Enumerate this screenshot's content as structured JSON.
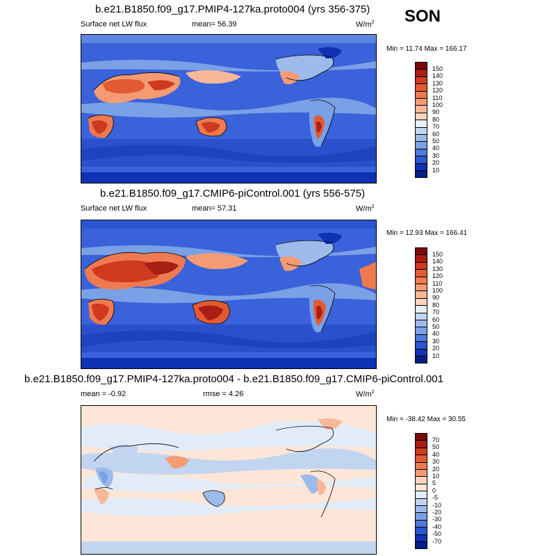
{
  "season": "SON",
  "panels": [
    {
      "title": "b.e21.B1850.f09_g17.PMIP4-127ka.proto004 (yrs 356-375)",
      "left_label": "Surface net LW flux",
      "mid_label": "mean=  56.39",
      "units_main": "W/m",
      "units_exp": "2",
      "minmax": "Min =  11.74 Max = 166.17",
      "colorbar": {
        "labels": [
          "150",
          "140",
          "130",
          "120",
          "110",
          "100",
          "90",
          "80",
          "70",
          "60",
          "50",
          "40",
          "30",
          "20",
          "10"
        ],
        "colors": [
          "#7d0a0a",
          "#a81d14",
          "#cf3a1f",
          "#e35a32",
          "#ef7a50",
          "#f59b74",
          "#f8b898",
          "#fbd4bd",
          "#e6eef8",
          "#c2d5f0",
          "#9cbbeb",
          "#7aa0e6",
          "#4f7bde",
          "#2c55d0",
          "#0f31b4",
          "#061e86"
        ]
      }
    },
    {
      "title": "b.e21.B1850.f09_g17.CMIP6-piControl.001 (yrs 556-575)",
      "left_label": "Surface net LW flux",
      "mid_label": "mean=  57.31",
      "units_main": "W/m",
      "units_exp": "2",
      "minmax": "Min =  12.93 Max = 166.41",
      "colorbar": {
        "labels": [
          "150",
          "140",
          "130",
          "120",
          "110",
          "100",
          "90",
          "80",
          "70",
          "60",
          "50",
          "40",
          "30",
          "20",
          "10"
        ],
        "colors": [
          "#7d0a0a",
          "#a81d14",
          "#cf3a1f",
          "#e35a32",
          "#ef7a50",
          "#f59b74",
          "#f8b898",
          "#fbd4bd",
          "#e6eef8",
          "#c2d5f0",
          "#9cbbeb",
          "#7aa0e6",
          "#4f7bde",
          "#2c55d0",
          "#0f31b4",
          "#061e86"
        ]
      }
    },
    {
      "title": "b.e21.B1850.f09_g17.PMIP4-127ka.proto004 - b.e21.B1850.f09_g17.CMIP6-piControl.001",
      "left_label": "mean =  -0.92",
      "mid_label": "rmse =  4.26",
      "units_main": "W/m",
      "units_exp": "2",
      "minmax": "Min = -38.42 Max =  30.55",
      "colorbar": {
        "labels": [
          "70",
          "50",
          "40",
          "30",
          "20",
          "10",
          "5",
          "0",
          "-5",
          "-10",
          "-20",
          "-30",
          "-40",
          "-50",
          "-70"
        ],
        "colors": [
          "#7d0a0a",
          "#a81d14",
          "#cf3a1f",
          "#e35a32",
          "#ef7a50",
          "#f59b74",
          "#fbd4bd",
          "#fde6d8",
          "#e2ecf8",
          "#c2d5f0",
          "#9cbbeb",
          "#7aa0e6",
          "#4f7bde",
          "#2c55d0",
          "#0f31b4",
          "#061e86"
        ]
      }
    }
  ],
  "chart_data": [
    {
      "type": "heatmap",
      "title": "b.e21.B1850.f09_g17.PMIP4-127ka.proto004 (yrs 356-375)",
      "field": "Surface net LW flux",
      "units": "W/m2",
      "season": "SON",
      "mean": 56.39,
      "min": 11.74,
      "max": 166.17,
      "levels": [
        10,
        20,
        30,
        40,
        50,
        60,
        70,
        80,
        90,
        100,
        110,
        120,
        130,
        140,
        150
      ]
    },
    {
      "type": "heatmap",
      "title": "b.e21.B1850.f09_g17.CMIP6-piControl.001 (yrs 556-575)",
      "field": "Surface net LW flux",
      "units": "W/m2",
      "season": "SON",
      "mean": 57.31,
      "min": 12.93,
      "max": 166.41,
      "levels": [
        10,
        20,
        30,
        40,
        50,
        60,
        70,
        80,
        90,
        100,
        110,
        120,
        130,
        140,
        150
      ]
    },
    {
      "type": "heatmap",
      "title": "b.e21.B1850.f09_g17.PMIP4-127ka.proto004 - b.e21.B1850.f09_g17.CMIP6-piControl.001",
      "units": "W/m2",
      "season": "SON",
      "mean": -0.92,
      "rmse": 4.26,
      "min": -38.42,
      "max": 30.55,
      "levels": [
        -70,
        -50,
        -40,
        -30,
        -20,
        -10,
        -5,
        0,
        5,
        10,
        20,
        30,
        40,
        50,
        70
      ]
    }
  ]
}
